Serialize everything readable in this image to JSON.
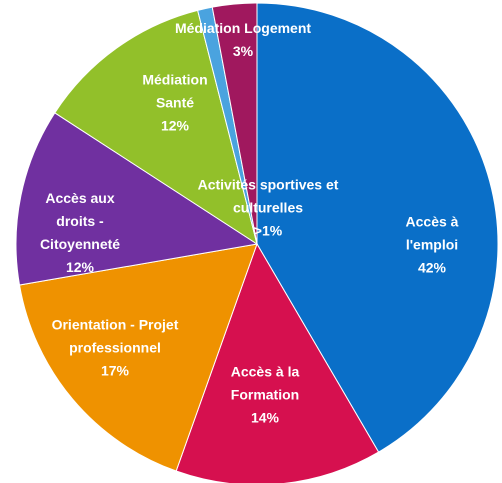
{
  "chart_data": {
    "type": "pie",
    "categories": [
      "Accès à l'emploi",
      "Accès à la Formation",
      "Orientation - Projet professionnel",
      "Accès aux droits - Citoyenneté",
      "Médiation Santé",
      "Activités sportives et culturelles",
      "Médiation Logement"
    ],
    "values": [
      42,
      14,
      17,
      12,
      12,
      1,
      3
    ],
    "value_labels": [
      "42%",
      "14%",
      "17%",
      "12%",
      "12%",
      ">1%",
      "3%"
    ],
    "colors": [
      "#0a6fc8",
      "#d6104f",
      "#ef9200",
      "#7030a0",
      "#92c02a",
      "#4aa3df",
      "#a0185e"
    ]
  }
}
